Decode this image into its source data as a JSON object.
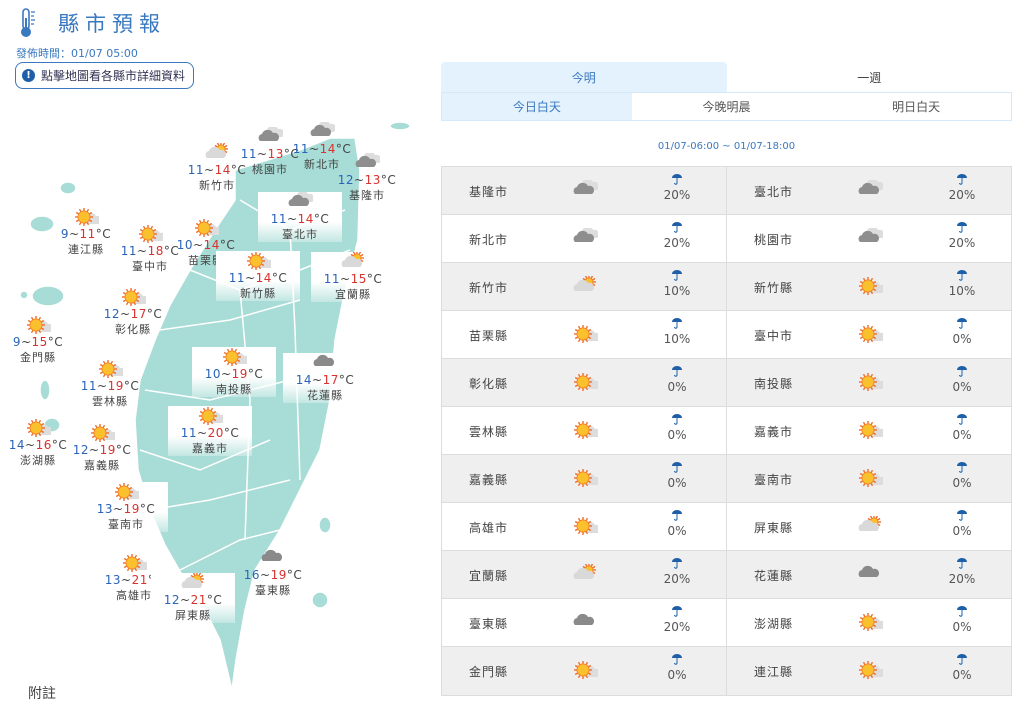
{
  "header": {
    "title": "縣市預報",
    "icon": "thermometer-icon",
    "publish_time": "發佈時間：01/07 05:00",
    "hint": "點擊地圖看各縣市詳細資料",
    "note": "附註"
  },
  "colors": {
    "accent": "#3a78c0",
    "low_temp": "#2a64b8",
    "high_temp": "#d8322e",
    "land": "#a8dcd6",
    "active_tab": "#e3f2fd"
  },
  "tabs": [
    {
      "label": "今明",
      "active": true
    },
    {
      "label": "一週",
      "active": false
    }
  ],
  "subtabs": [
    {
      "label": "今日白天",
      "active": true
    },
    {
      "label": "今晚明晨",
      "active": false
    },
    {
      "label": "明日白天",
      "active": false
    }
  ],
  "range": "01/07-06:00 ~ 01/07-18:00",
  "map": [
    {
      "name": "新竹市",
      "lo": "11",
      "hi": "14",
      "icon": "partly-cloudy"
    },
    {
      "name": "桃園市",
      "lo": "11",
      "hi": "13",
      "icon": "cloudy"
    },
    {
      "name": "新北市",
      "lo": "11",
      "hi": "14",
      "icon": "cloudy"
    },
    {
      "name": "基隆市",
      "lo": "12",
      "hi": "13",
      "icon": "cloudy"
    },
    {
      "name": "臺北市",
      "lo": "11",
      "hi": "14",
      "icon": "cloudy"
    },
    {
      "name": "連江縣",
      "lo": "9",
      "hi": "11",
      "icon": "sunny"
    },
    {
      "name": "臺中市",
      "lo": "11",
      "hi": "18",
      "icon": "sunny"
    },
    {
      "name": "苗栗縣",
      "lo": "10",
      "hi": "14",
      "icon": "sunny"
    },
    {
      "name": "新竹縣",
      "lo": "11",
      "hi": "14",
      "icon": "sunny"
    },
    {
      "name": "宜蘭縣",
      "lo": "11",
      "hi": "15",
      "icon": "partly-cloudy"
    },
    {
      "name": "彰化縣",
      "lo": "12",
      "hi": "17",
      "icon": "sunny"
    },
    {
      "name": "金門縣",
      "lo": "9",
      "hi": "15",
      "icon": "sunny"
    },
    {
      "name": "南投縣",
      "lo": "10",
      "hi": "19",
      "icon": "sunny"
    },
    {
      "name": "花蓮縣",
      "lo": "14",
      "hi": "17",
      "icon": "overcast"
    },
    {
      "name": "雲林縣",
      "lo": "11",
      "hi": "19",
      "icon": "sunny"
    },
    {
      "name": "嘉義市",
      "lo": "11",
      "hi": "20",
      "icon": "sunny"
    },
    {
      "name": "澎湖縣",
      "lo": "14",
      "hi": "16",
      "icon": "sunny"
    },
    {
      "name": "嘉義縣",
      "lo": "12",
      "hi": "19",
      "icon": "sunny"
    },
    {
      "name": "臺南市",
      "lo": "13",
      "hi": "19",
      "icon": "sunny"
    },
    {
      "name": "高雄市",
      "lo": "13",
      "hi": "21",
      "icon": "sunny"
    },
    {
      "name": "屏東縣",
      "lo": "12",
      "hi": "21",
      "icon": "partly-cloudy"
    },
    {
      "name": "臺東縣",
      "lo": "16",
      "hi": "19",
      "icon": "overcast"
    }
  ],
  "table": [
    [
      {
        "name": "基隆市",
        "icon": "cloudy",
        "pop": "20%"
      },
      {
        "name": "臺北市",
        "icon": "cloudy",
        "pop": "20%"
      }
    ],
    [
      {
        "name": "新北市",
        "icon": "cloudy",
        "pop": "20%"
      },
      {
        "name": "桃園市",
        "icon": "cloudy",
        "pop": "20%"
      }
    ],
    [
      {
        "name": "新竹市",
        "icon": "partly-cloudy",
        "pop": "10%"
      },
      {
        "name": "新竹縣",
        "icon": "sunny",
        "pop": "10%"
      }
    ],
    [
      {
        "name": "苗栗縣",
        "icon": "sunny",
        "pop": "10%"
      },
      {
        "name": "臺中市",
        "icon": "sunny",
        "pop": "0%"
      }
    ],
    [
      {
        "name": "彰化縣",
        "icon": "sunny",
        "pop": "0%"
      },
      {
        "name": "南投縣",
        "icon": "sunny",
        "pop": "0%"
      }
    ],
    [
      {
        "name": "雲林縣",
        "icon": "sunny",
        "pop": "0%"
      },
      {
        "name": "嘉義市",
        "icon": "sunny",
        "pop": "0%"
      }
    ],
    [
      {
        "name": "嘉義縣",
        "icon": "sunny",
        "pop": "0%"
      },
      {
        "name": "臺南市",
        "icon": "sunny",
        "pop": "0%"
      }
    ],
    [
      {
        "name": "高雄市",
        "icon": "sunny",
        "pop": "0%"
      },
      {
        "name": "屏東縣",
        "icon": "partly-cloudy",
        "pop": "0%"
      }
    ],
    [
      {
        "name": "宜蘭縣",
        "icon": "partly-cloudy",
        "pop": "20%"
      },
      {
        "name": "花蓮縣",
        "icon": "overcast",
        "pop": "20%"
      }
    ],
    [
      {
        "name": "臺東縣",
        "icon": "overcast",
        "pop": "20%"
      },
      {
        "name": "澎湖縣",
        "icon": "sunny",
        "pop": "0%"
      }
    ],
    [
      {
        "name": "金門縣",
        "icon": "sunny",
        "pop": "0%"
      },
      {
        "name": "連江縣",
        "icon": "sunny",
        "pop": "0%"
      }
    ]
  ]
}
